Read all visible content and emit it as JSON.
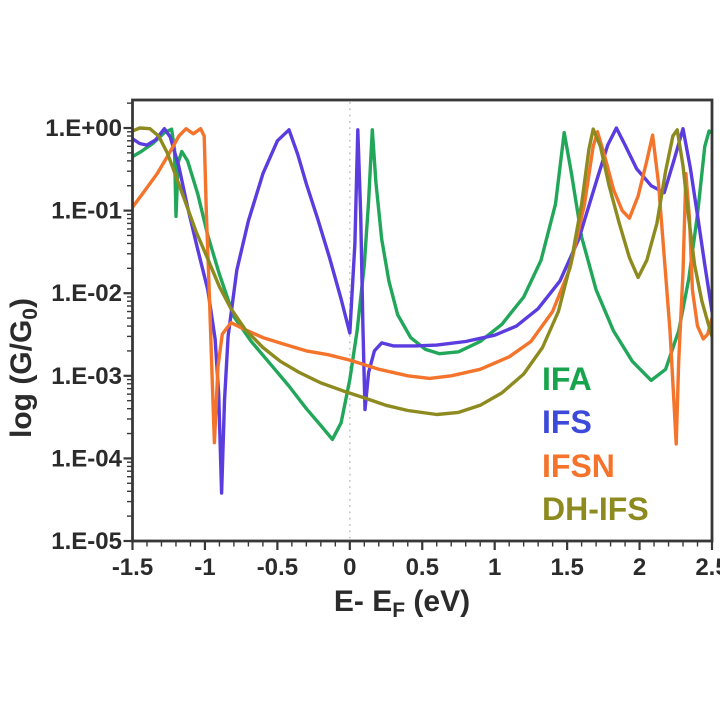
{
  "figure": {
    "background": "#ffffff",
    "axis_color": "#383838",
    "text_color": "#2b2b2b"
  },
  "chart_data": {
    "type": "line",
    "title": "",
    "xlabel": "E- EF (eV)",
    "xlabel_parts": [
      {
        "text": "E- E"
      },
      {
        "text": "F",
        "subscript": true
      },
      {
        "text": " (eV)"
      }
    ],
    "ylabel": "log (G/G0)",
    "ylabel_parts": [
      {
        "text": "log (G/G"
      },
      {
        "text": "0",
        "subscript": true
      },
      {
        "text": ")"
      }
    ],
    "x_axis": {
      "min": -1.5,
      "max": 2.5,
      "major_tick_step": 0.5,
      "minor_tick_step": 0.1,
      "tick_labels": [
        {
          "value": -1.5,
          "label": "-1.5"
        },
        {
          "value": -1.0,
          "label": "-1"
        },
        {
          "value": -0.5,
          "label": "-0.5"
        },
        {
          "value": 0.0,
          "label": "0"
        },
        {
          "value": 0.5,
          "label": "0.5"
        },
        {
          "value": 1.0,
          "label": "1"
        },
        {
          "value": 1.5,
          "label": "1.5"
        },
        {
          "value": 2.0,
          "label": "2"
        },
        {
          "value": 2.5,
          "label": "2.5"
        }
      ]
    },
    "y_axis": {
      "scale": "log",
      "min": 1e-05,
      "max": 2,
      "tick_labels": [
        {
          "value": 1,
          "label": "1.E+00"
        },
        {
          "value": 0.1,
          "label": "1.E-01"
        },
        {
          "value": 0.01,
          "label": "1.E-02"
        },
        {
          "value": 0.001,
          "label": "1.E-03"
        },
        {
          "value": 0.0001,
          "label": "1.E-04"
        },
        {
          "value": 1e-05,
          "label": "1.E-05"
        }
      ]
    },
    "grid": "off",
    "reference_line": {
      "x": 0,
      "style": "dotted",
      "color": "#c6c6c6"
    },
    "legend": {
      "position": "inside-right"
    },
    "series": [
      {
        "name": "IFA",
        "color": "#22a75a",
        "label_color": "#17a44c",
        "points": [
          [
            -1.5,
            0.45
          ],
          [
            -1.44,
            0.52
          ],
          [
            -1.36,
            0.65
          ],
          [
            -1.28,
            0.88
          ],
          [
            -1.23,
            0.97
          ],
          [
            -1.21,
            0.55
          ],
          [
            -1.2,
            0.085
          ],
          [
            -1.185,
            0.38
          ],
          [
            -1.16,
            0.52
          ],
          [
            -1.12,
            0.4
          ],
          [
            -1.05,
            0.16
          ],
          [
            -0.98,
            0.05
          ],
          [
            -0.9,
            0.017
          ],
          [
            -0.8,
            0.0052
          ],
          [
            -0.68,
            0.0026
          ],
          [
            -0.55,
            0.0014
          ],
          [
            -0.42,
            0.00075
          ],
          [
            -0.3,
            0.0004
          ],
          [
            -0.2,
            0.00025
          ],
          [
            -0.12,
            0.00017
          ],
          [
            -0.06,
            0.00027
          ],
          [
            0,
            0.0009
          ],
          [
            0.05,
            0.0035
          ],
          [
            0.1,
            0.022
          ],
          [
            0.13,
            0.13
          ],
          [
            0.155,
            0.95
          ],
          [
            0.18,
            0.22
          ],
          [
            0.22,
            0.045
          ],
          [
            0.27,
            0.014
          ],
          [
            0.33,
            0.0055
          ],
          [
            0.42,
            0.0029
          ],
          [
            0.52,
            0.0021
          ],
          [
            0.62,
            0.00185
          ],
          [
            0.75,
            0.00195
          ],
          [
            0.9,
            0.0026
          ],
          [
            1.05,
            0.0042
          ],
          [
            1.2,
            0.009
          ],
          [
            1.32,
            0.025
          ],
          [
            1.42,
            0.12
          ],
          [
            1.48,
            0.88
          ],
          [
            1.53,
            0.28
          ],
          [
            1.6,
            0.048
          ],
          [
            1.7,
            0.011
          ],
          [
            1.82,
            0.0035
          ],
          [
            1.95,
            0.0015
          ],
          [
            2.08,
            0.00088
          ],
          [
            2.18,
            0.0012
          ],
          [
            2.27,
            0.0035
          ],
          [
            2.34,
            0.015
          ],
          [
            2.4,
            0.09
          ],
          [
            2.45,
            0.6
          ],
          [
            2.48,
            0.92
          ],
          [
            2.5,
            0.87
          ]
        ]
      },
      {
        "name": "IFS",
        "color": "#5b3cdf",
        "label_color": "#3c49d9",
        "points": [
          [
            -1.5,
            0.74
          ],
          [
            -1.45,
            0.65
          ],
          [
            -1.4,
            0.62
          ],
          [
            -1.34,
            0.72
          ],
          [
            -1.28,
            0.98
          ],
          [
            -1.24,
            0.78
          ],
          [
            -1.18,
            0.34
          ],
          [
            -1.12,
            0.11
          ],
          [
            -1.05,
            0.034
          ],
          [
            -0.98,
            0.011
          ],
          [
            -0.93,
            0.0028
          ],
          [
            -0.905,
            0.0006
          ],
          [
            -0.885,
            3.8e-05
          ],
          [
            -0.865,
            0.0005
          ],
          [
            -0.84,
            0.003
          ],
          [
            -0.78,
            0.019
          ],
          [
            -0.7,
            0.075
          ],
          [
            -0.6,
            0.28
          ],
          [
            -0.5,
            0.7
          ],
          [
            -0.42,
            0.95
          ],
          [
            -0.36,
            0.48
          ],
          [
            -0.3,
            0.21
          ],
          [
            -0.22,
            0.078
          ],
          [
            -0.14,
            0.027
          ],
          [
            -0.06,
            0.0085
          ],
          [
            0,
            0.0033
          ],
          [
            0.035,
            0.04
          ],
          [
            0.055,
            0.95
          ],
          [
            0.075,
            0.09
          ],
          [
            0.09,
            0.004
          ],
          [
            0.105,
            0.00039
          ],
          [
            0.13,
            0.0011
          ],
          [
            0.17,
            0.002
          ],
          [
            0.22,
            0.0025
          ],
          [
            0.3,
            0.0023
          ],
          [
            0.45,
            0.0023
          ],
          [
            0.6,
            0.00235
          ],
          [
            0.8,
            0.0026
          ],
          [
            1,
            0.0031
          ],
          [
            1.15,
            0.004
          ],
          [
            1.3,
            0.0065
          ],
          [
            1.45,
            0.014
          ],
          [
            1.58,
            0.045
          ],
          [
            1.7,
            0.22
          ],
          [
            1.78,
            0.62
          ],
          [
            1.84,
            1
          ],
          [
            1.9,
            0.62
          ],
          [
            1.98,
            0.32
          ],
          [
            2.08,
            0.2
          ],
          [
            2.17,
            0.165
          ],
          [
            2.24,
            0.42
          ],
          [
            2.3,
            0.98
          ],
          [
            2.35,
            0.33
          ],
          [
            2.4,
            0.088
          ],
          [
            2.45,
            0.022
          ],
          [
            2.5,
            0.006
          ]
        ]
      },
      {
        "name": "IFSN",
        "color": "#f4742b",
        "label_color": "#f5732a",
        "points": [
          [
            -1.5,
            0.11
          ],
          [
            -1.42,
            0.17
          ],
          [
            -1.33,
            0.28
          ],
          [
            -1.25,
            0.48
          ],
          [
            -1.18,
            0.8
          ],
          [
            -1.13,
            0.98
          ],
          [
            -1.08,
            0.85
          ],
          [
            -1.03,
            0.98
          ],
          [
            -1.005,
            0.8
          ],
          [
            -0.99,
            0.09
          ],
          [
            -0.97,
            0.01
          ],
          [
            -0.95,
            0.0009
          ],
          [
            -0.935,
            0.000155
          ],
          [
            -0.91,
            0.0013
          ],
          [
            -0.88,
            0.0032
          ],
          [
            -0.82,
            0.0044
          ],
          [
            -0.72,
            0.0036
          ],
          [
            -0.6,
            0.0029
          ],
          [
            -0.45,
            0.0024
          ],
          [
            -0.3,
            0.002
          ],
          [
            -0.15,
            0.0018
          ],
          [
            0,
            0.00155
          ],
          [
            0.2,
            0.0012
          ],
          [
            0.4,
            0.001
          ],
          [
            0.55,
            0.00093
          ],
          [
            0.7,
            0.001
          ],
          [
            0.9,
            0.0012
          ],
          [
            1.1,
            0.0017
          ],
          [
            1.25,
            0.0026
          ],
          [
            1.4,
            0.006
          ],
          [
            1.52,
            0.02
          ],
          [
            1.62,
            0.12
          ],
          [
            1.68,
            0.6
          ],
          [
            1.71,
            0.9
          ],
          [
            1.76,
            0.45
          ],
          [
            1.82,
            0.18
          ],
          [
            1.88,
            0.1
          ],
          [
            1.93,
            0.081
          ],
          [
            1.99,
            0.15
          ],
          [
            2.05,
            0.4
          ],
          [
            2.09,
            0.82
          ],
          [
            2.13,
            0.22
          ],
          [
            2.17,
            0.028
          ],
          [
            2.21,
            0.0035
          ],
          [
            2.24,
            0.0004
          ],
          [
            2.253,
            0.00015
          ],
          [
            2.27,
            0.0015
          ],
          [
            2.3,
            0.018
          ],
          [
            2.32,
            0.28
          ],
          [
            2.345,
            0.08
          ],
          [
            2.365,
            0.011
          ],
          [
            2.4,
            0.004
          ],
          [
            2.44,
            0.0028
          ],
          [
            2.47,
            0.0032
          ],
          [
            2.5,
            0.005
          ]
        ]
      },
      {
        "name": "DH-IFS",
        "color": "#8d8b20",
        "label_color": "#8d8b1f",
        "points": [
          [
            -1.5,
            0.92
          ],
          [
            -1.45,
            1
          ],
          [
            -1.38,
            0.98
          ],
          [
            -1.32,
            0.8
          ],
          [
            -1.26,
            0.5
          ],
          [
            -1.2,
            0.26
          ],
          [
            -1.13,
            0.12
          ],
          [
            -1.06,
            0.055
          ],
          [
            -0.98,
            0.026
          ],
          [
            -0.9,
            0.012
          ],
          [
            -0.82,
            0.0065
          ],
          [
            -0.72,
            0.0036
          ],
          [
            -0.6,
            0.0022
          ],
          [
            -0.48,
            0.0015
          ],
          [
            -0.35,
            0.0011
          ],
          [
            -0.2,
            0.00082
          ],
          [
            -0.05,
            0.00066
          ],
          [
            0.1,
            0.00054
          ],
          [
            0.25,
            0.00044
          ],
          [
            0.4,
            0.00038
          ],
          [
            0.6,
            0.00034
          ],
          [
            0.75,
            0.00036
          ],
          [
            0.9,
            0.00044
          ],
          [
            1.05,
            0.00062
          ],
          [
            1.2,
            0.00105
          ],
          [
            1.33,
            0.0022
          ],
          [
            1.44,
            0.006
          ],
          [
            1.53,
            0.025
          ],
          [
            1.6,
            0.12
          ],
          [
            1.65,
            0.55
          ],
          [
            1.68,
            0.97
          ],
          [
            1.73,
            0.6
          ],
          [
            1.79,
            0.2
          ],
          [
            1.86,
            0.07
          ],
          [
            1.93,
            0.027
          ],
          [
            1.99,
            0.0155
          ],
          [
            2.05,
            0.025
          ],
          [
            2.12,
            0.07
          ],
          [
            2.18,
            0.3
          ],
          [
            2.23,
            0.8
          ],
          [
            2.26,
            0.95
          ],
          [
            2.3,
            0.35
          ],
          [
            2.34,
            0.08
          ],
          [
            2.38,
            0.022
          ],
          [
            2.43,
            0.008
          ],
          [
            2.47,
            0.0045
          ],
          [
            2.5,
            0.003
          ]
        ]
      }
    ]
  }
}
